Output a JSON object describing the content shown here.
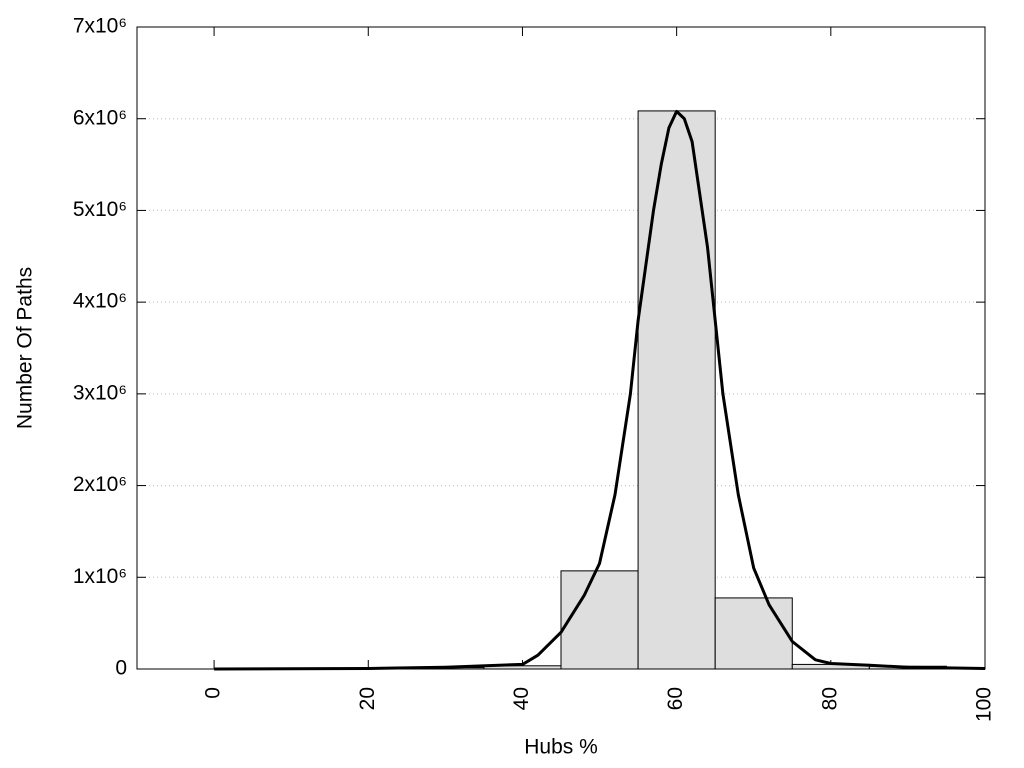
{
  "chart_data": {
    "type": "histogram",
    "xlabel": "Hubs %",
    "ylabel": "Number Of Paths",
    "bins": [
      5,
      15,
      25,
      35,
      45,
      55,
      65,
      75,
      85,
      95
    ],
    "values": [
      5000,
      8000,
      15000,
      35000,
      1070000,
      6085000,
      775000,
      50000,
      30000
    ],
    "color": "#dedede",
    "edgecolor": "#000000",
    "curve": {
      "color": "#000000",
      "x": [
        0,
        10,
        20,
        30,
        40,
        42,
        45,
        48,
        50,
        52,
        54,
        55,
        57,
        58,
        59,
        60,
        61,
        62,
        64,
        65,
        66,
        68,
        70,
        72,
        75,
        78,
        80,
        85,
        90,
        100
      ],
      "y": [
        0,
        2000,
        5000,
        20000,
        50000,
        150000,
        400000,
        800000,
        1150000,
        1900000,
        3000000,
        3800000,
        5000000,
        5500000,
        5900000,
        6080000,
        6000000,
        5750000,
        4600000,
        3800000,
        3000000,
        1900000,
        1100000,
        700000,
        300000,
        100000,
        60000,
        40000,
        20000,
        5000
      ]
    },
    "xlim": [
      -10,
      100
    ],
    "ylim": [
      0,
      7000000
    ],
    "xticks": [
      0,
      20,
      40,
      60,
      80,
      100
    ],
    "yticks": [
      0,
      {
        "value": 1000000,
        "label": "1x10⁶"
      },
      {
        "value": 2000000,
        "label": "2x10⁶"
      },
      {
        "value": 3000000,
        "label": "3x10⁶"
      },
      {
        "value": 4000000,
        "label": "4x10⁶"
      },
      {
        "value": 5000000,
        "label": "5x10⁶"
      },
      {
        "value": 6000000,
        "label": "6x10⁶"
      },
      {
        "value": 7000000,
        "label": "7x10⁶"
      }
    ],
    "grid": true
  }
}
